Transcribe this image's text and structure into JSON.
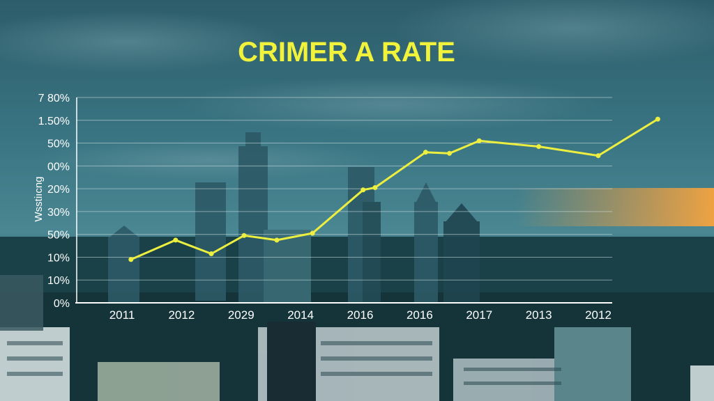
{
  "chart_data": {
    "type": "line",
    "title": "CRIMER A RATE",
    "ylabel": "Wsstiıcng",
    "yticks": [
      "0%",
      "10%",
      "10%",
      "50%",
      "30%",
      "20%",
      "00%",
      "50%",
      "1.50%",
      "7 80%"
    ],
    "xticks": [
      "2011",
      "2012",
      "2029",
      "2014",
      "2016",
      "2016",
      "2017",
      "2013",
      "2012"
    ],
    "points": [
      {
        "x": 0.15,
        "y": 1.9
      },
      {
        "x": 0.9,
        "y": 2.75
      },
      {
        "x": 1.5,
        "y": 2.15
      },
      {
        "x": 2.05,
        "y": 2.95
      },
      {
        "x": 2.6,
        "y": 2.75
      },
      {
        "x": 3.2,
        "y": 3.05
      },
      {
        "x": 4.05,
        "y": 4.95
      },
      {
        "x": 4.25,
        "y": 5.05
      },
      {
        "x": 5.1,
        "y": 6.6
      },
      {
        "x": 5.5,
        "y": 6.55
      },
      {
        "x": 6.0,
        "y": 7.1
      },
      {
        "x": 7.0,
        "y": 6.85
      },
      {
        "x": 8.0,
        "y": 6.45
      },
      {
        "x": 9.0,
        "y": 8.05
      }
    ],
    "grid": true,
    "colors": {
      "line": "#ecef3f",
      "title": "#f1f23c",
      "grid": "#d4e2e6",
      "axis": "#ffffff"
    }
  }
}
